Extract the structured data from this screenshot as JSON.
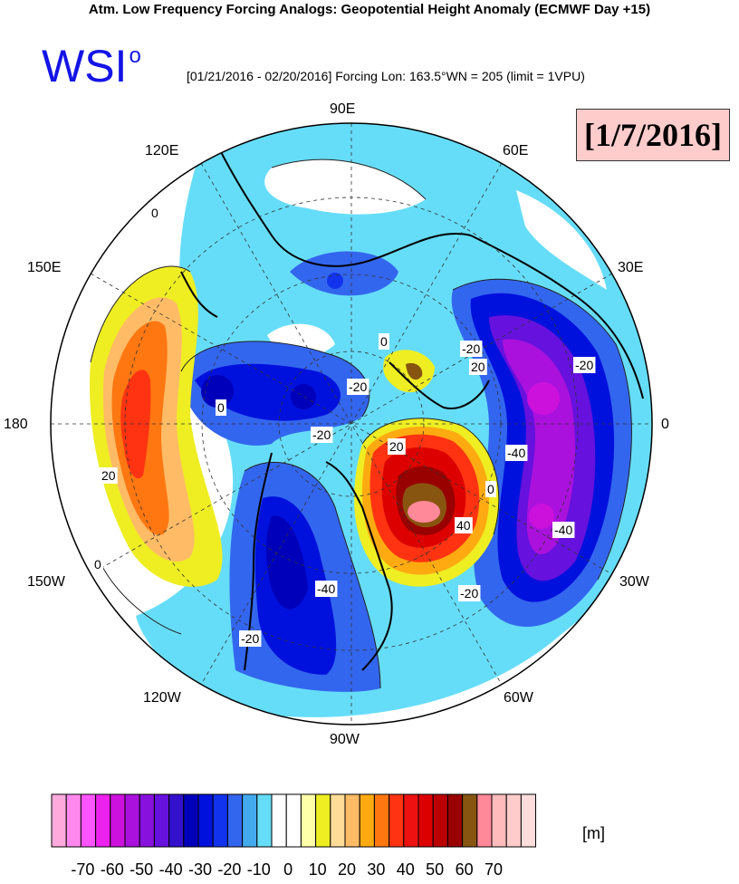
{
  "header": {
    "title": "Atm. Low Frequency Forcing Analogs: Geopotential Height Anomaly (ECMWF Day +15)",
    "logo": "WSI",
    "logo_degree": "o",
    "subtitle": "[01/21/2016 - 02/20/2016] Forcing Lon: 163.5°WN = 205 (limit = 1VPU)",
    "date_label": "[1/7/2016]"
  },
  "map": {
    "longitude_labels": [
      "90E",
      "60E",
      "30E",
      "0",
      "30W",
      "60W",
      "90W",
      "120W",
      "150W",
      "180",
      "150E",
      "120E"
    ],
    "contour_labels": [
      "0",
      "20",
      "-20",
      "-20",
      "0",
      "20",
      "-20",
      "-40",
      "20",
      "0",
      "40",
      "-40",
      "-20",
      "-40",
      "0",
      "-20",
      "-20",
      "0"
    ]
  },
  "colorbar": {
    "colors": [
      "#ffaadd",
      "#ff88ee",
      "#ff55ff",
      "#ee22ee",
      "#cc11dd",
      "#aa11dd",
      "#8811dd",
      "#6611dd",
      "#3311cc",
      "#0000bb",
      "#0011dd",
      "#1133ee",
      "#3366ee",
      "#44aaee",
      "#66ddf8",
      "#ffffff",
      "#ffffff",
      "#ffffaa",
      "#eeee22",
      "#ffdd99",
      "#ffbb66",
      "#ffaa11",
      "#ff7711",
      "#ff3311",
      "#ee1111",
      "#dd0000",
      "#bb0000",
      "#990000",
      "#885511",
      "#ff8899",
      "#ffbbbb",
      "#ffcccc",
      "#ffdddd",
      "#ffeeee"
    ],
    "tick_labels": [
      "-70",
      "-60",
      "-50",
      "-40",
      "-30",
      "-20",
      "-10",
      "0",
      "10",
      "20",
      "30",
      "40",
      "50",
      "60",
      "70"
    ],
    "units": "[m]"
  }
}
